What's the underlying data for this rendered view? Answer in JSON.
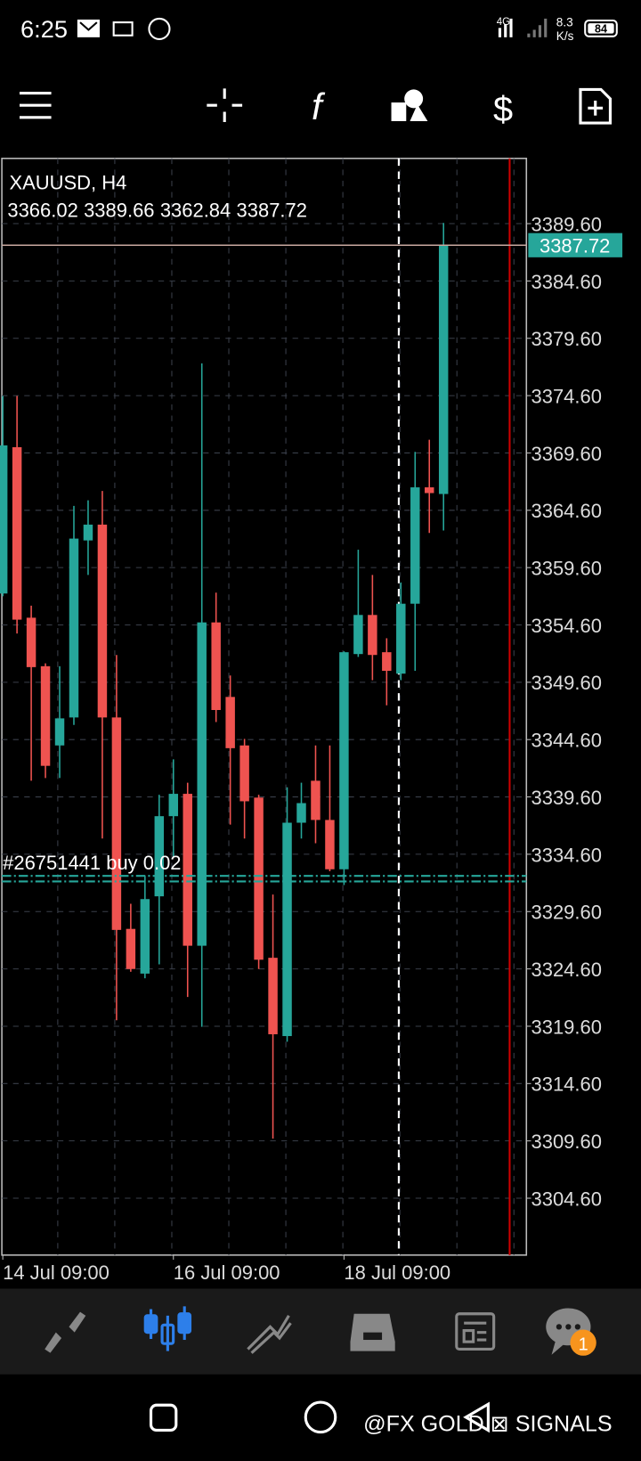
{
  "status_bar": {
    "time": "6:25",
    "network": "4G",
    "speed": "8.3",
    "speed_unit": "K/s",
    "battery": "84"
  },
  "chart_data": {
    "type": "candlestick",
    "symbol": "XAUUSD, H4",
    "categories": [
      "14 Jul 09:00",
      null,
      null,
      null,
      null,
      null,
      null,
      null,
      null,
      null,
      null,
      null,
      "16 Jul 09:00",
      null,
      null,
      null,
      null,
      null,
      null,
      null,
      null,
      null,
      null,
      null,
      "18 Jul 09:00",
      null,
      null,
      null,
      null,
      null,
      null,
      null
    ],
    "open": [
      3357.34,
      3370.1,
      3355.23,
      3351.0,
      3344.09,
      3346.53,
      3361.97,
      3363.35,
      3346.53,
      3328.09,
      3324.19,
      3330.93,
      3337.92,
      3339.87,
      3326.62,
      3354.82,
      3348.32,
      3344.09,
      3339.54,
      3325.57,
      3318.74,
      3337.35,
      3341.01,
      3337.59,
      3333.29,
      3352.06,
      3355.47,
      3352.22,
      3350.35,
      3356.45,
      3366.6,
      3366.02
    ],
    "high": [
      3374.57,
      3374.57,
      3356.28,
      3351.25,
      3351.0,
      3364.98,
      3365.47,
      3366.28,
      3351.98,
      3330.28,
      3332.72,
      3339.79,
      3342.88,
      3340.84,
      3377.41,
      3357.42,
      3350.19,
      3344.66,
      3339.79,
      3331.09,
      3340.44,
      3340.84,
      3344.09,
      3344.09,
      3352.3,
      3361.16,
      3358.96,
      3353.44,
      3358.31,
      3369.69,
      3370.75,
      3389.66
    ],
    "low": [
      3357.1,
      3353.85,
      3341.01,
      3341.25,
      3341.25,
      3345.88,
      3358.96,
      3335.97,
      3320.12,
      3324.35,
      3323.78,
      3325.0,
      3334.34,
      3322.15,
      3319.55,
      3346.13,
      3337.19,
      3335.97,
      3324.59,
      3309.8,
      3318.25,
      3335.97,
      3335.56,
      3333.12,
      3331.91,
      3351.81,
      3349.78,
      3347.59,
      3349.78,
      3350.6,
      3362.62,
      3362.84
    ],
    "close": [
      3370.26,
      3355.06,
      3350.92,
      3342.31,
      3346.45,
      3362.13,
      3363.35,
      3346.53,
      3328.0,
      3324.59,
      3330.69,
      3337.92,
      3339.87,
      3326.62,
      3354.82,
      3347.18,
      3343.85,
      3339.22,
      3325.4,
      3318.9,
      3337.35,
      3339.06,
      3337.59,
      3333.29,
      3352.22,
      3355.47,
      3351.98,
      3350.6,
      3356.45,
      3366.6,
      3366.1,
      3387.72
    ],
    "up_color": "#26a69a",
    "down_color": "#ef5350",
    "ylim": [
      3299.64,
      3395.29
    ],
    "yticks": [
      {
        "value": 3304.6,
        "label": "3304.60"
      },
      {
        "value": 3309.6,
        "label": "3309.60"
      },
      {
        "value": 3314.6,
        "label": "3314.60"
      },
      {
        "value": 3319.6,
        "label": "3319.60"
      },
      {
        "value": 3324.6,
        "label": "3324.60"
      },
      {
        "value": 3329.6,
        "label": "3329.60"
      },
      {
        "value": 3334.6,
        "label": "3334.60"
      },
      {
        "value": 3339.6,
        "label": "3339.60"
      },
      {
        "value": 3344.6,
        "label": "3344.60"
      },
      {
        "value": 3349.6,
        "label": "3349.60"
      },
      {
        "value": 3354.6,
        "label": "3354.60"
      },
      {
        "value": 3359.6,
        "label": "3359.60"
      },
      {
        "value": 3364.6,
        "label": "3364.60"
      },
      {
        "value": 3369.6,
        "label": "3369.60"
      },
      {
        "value": 3374.6,
        "label": "3374.60"
      },
      {
        "value": 3379.6,
        "label": "3379.60"
      },
      {
        "value": 3384.6,
        "label": "3384.60"
      },
      {
        "value": 3389.6,
        "label": "3389.60"
      }
    ],
    "grid": true,
    "order_line": {
      "label": "#26751441 buy 0.02",
      "value": 3332.47
    }
  },
  "watermark": "@FX GOLD ⊠ SIGNALS",
  "notification_badge": "1"
}
